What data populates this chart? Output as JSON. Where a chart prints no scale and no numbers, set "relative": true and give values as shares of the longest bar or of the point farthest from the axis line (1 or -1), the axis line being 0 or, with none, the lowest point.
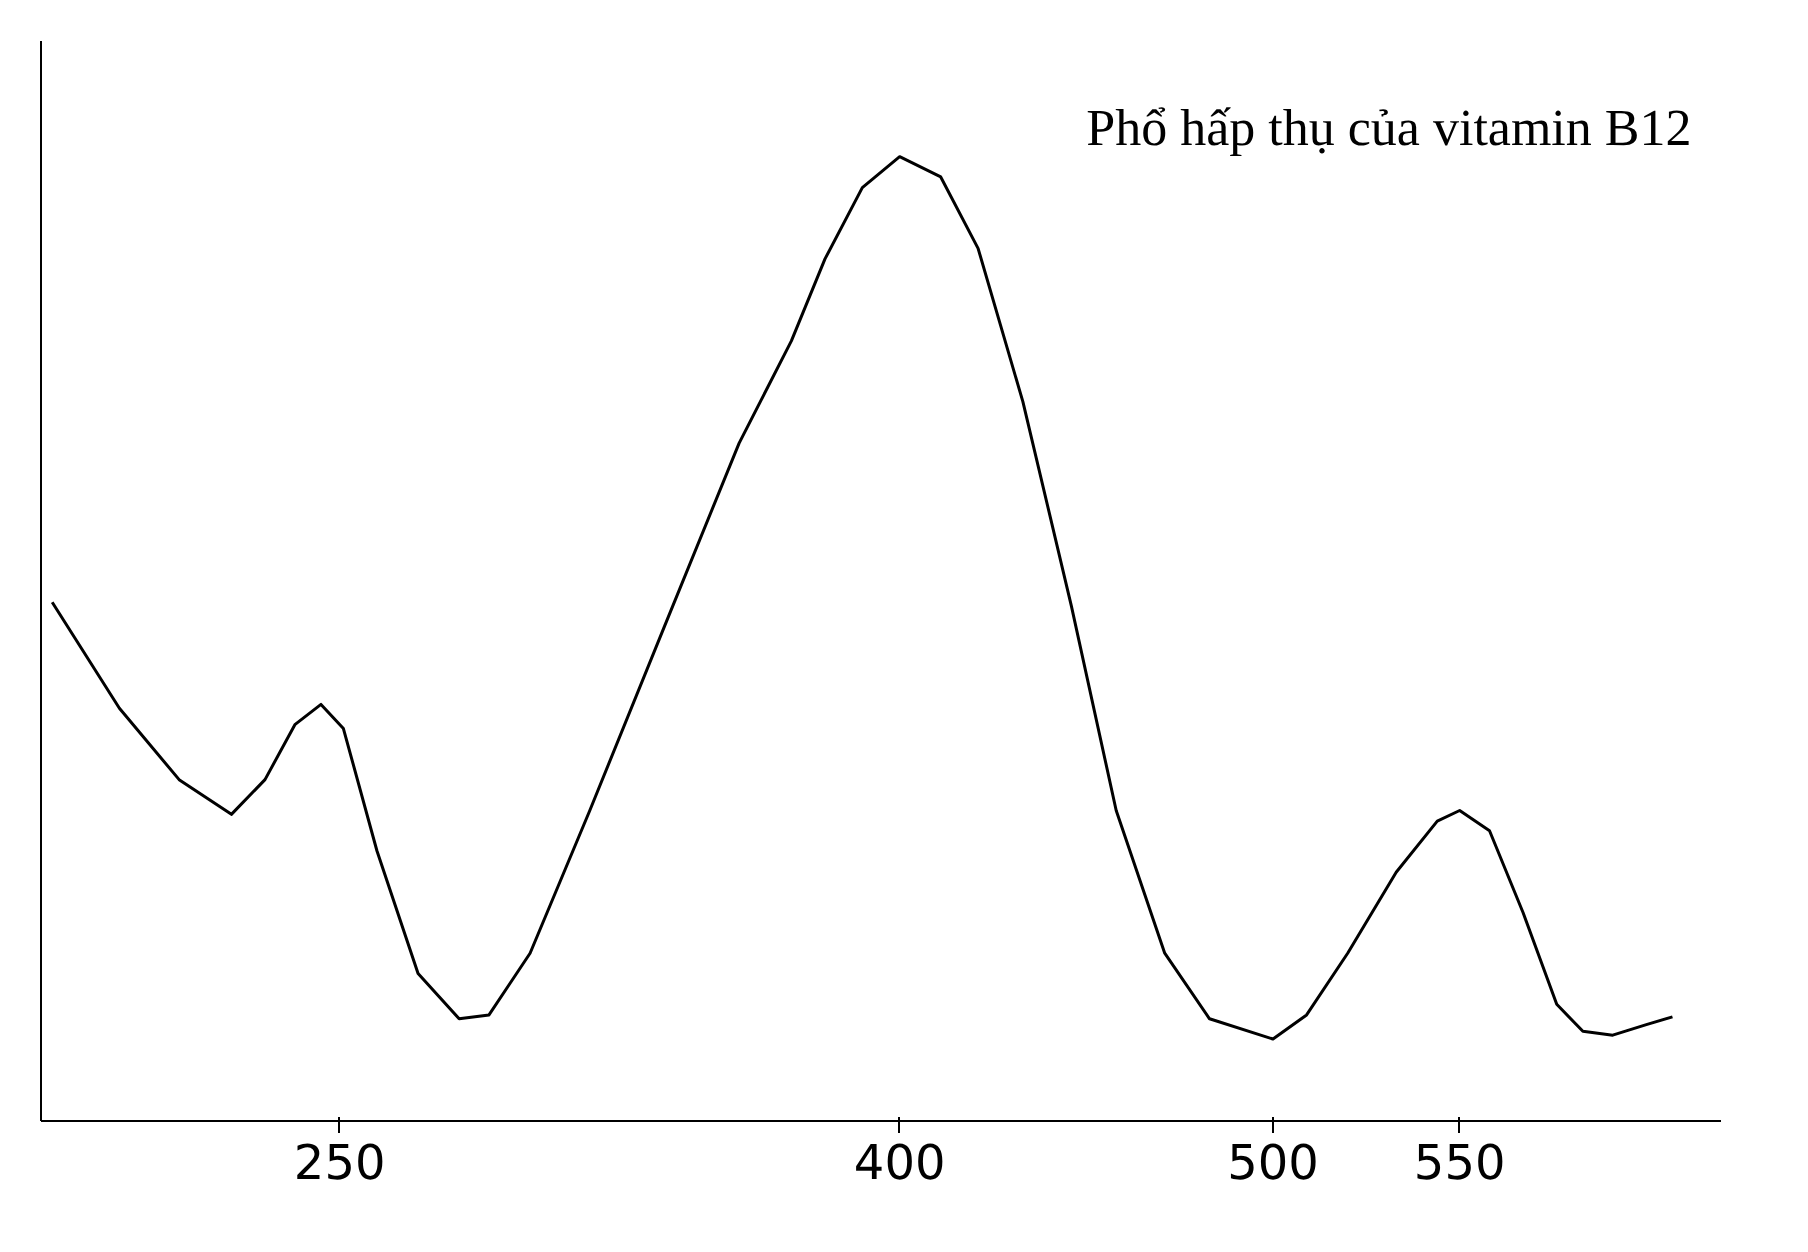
{
  "chart_data": {
    "type": "line",
    "relative": true,
    "annotations": [
      "Phổ hấp thụ của vitamin B12"
    ],
    "xlim": [
      170,
      620
    ],
    "xticks": [
      250,
      400,
      500,
      550
    ],
    "grid": false,
    "series": [
      {
        "color": "#000000",
        "x": [
          173,
          191,
          207,
          221,
          230,
          238,
          245,
          251,
          260,
          271,
          282,
          290,
          301,
          317,
          337,
          357,
          371,
          380,
          390,
          400,
          411,
          421,
          433,
          446,
          458,
          471,
          483,
          500,
          509,
          520,
          533,
          544,
          550,
          558,
          567,
          576,
          583,
          591,
          600,
          607
        ],
        "values": [
          0.538,
          0.428,
          0.354,
          0.318,
          0.354,
          0.411,
          0.432,
          0.407,
          0.28,
          0.153,
          0.106,
          0.11,
          0.174,
          0.322,
          0.513,
          0.703,
          0.809,
          0.894,
          0.968,
          1.0,
          0.979,
          0.905,
          0.746,
          0.534,
          0.322,
          0.174,
          0.106,
          0.085,
          0.11,
          0.174,
          0.258,
          0.311,
          0.322,
          0.301,
          0.216,
          0.121,
          0.093,
          0.089,
          0.1,
          0.108
        ]
      }
    ]
  }
}
